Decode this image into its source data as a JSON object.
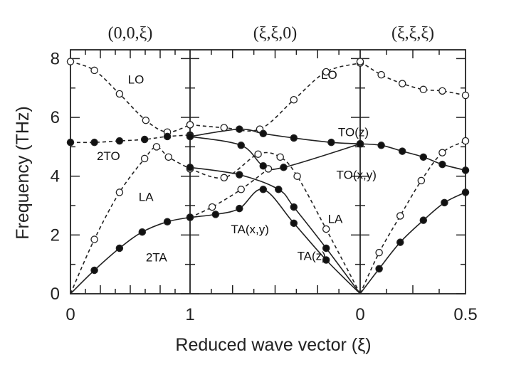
{
  "chart_data": {
    "type": "scatter",
    "title": "",
    "xlabel": "Reduced wave vector (ξ)",
    "ylabel": "Frequency (THz)",
    "ylim": [
      0,
      8.3
    ],
    "yticks": [
      "0",
      "2",
      "4",
      "6",
      "8"
    ],
    "xtick_labels": [
      "0",
      "1",
      "0",
      "0.5"
    ],
    "directions": [
      "(0,0,ξ)",
      "(ξ,ξ,0)",
      "(ξ,ξ,ξ)"
    ],
    "grid": false,
    "legend": "none",
    "colors": {
      "axis": "#222222",
      "filled_marker": "#111111",
      "open_marker": "#ffffff"
    },
    "panels": [
      {
        "name": "(0,0,ξ)",
        "xlim": [
          0,
          1
        ]
      },
      {
        "name": "(ξ,ξ,0)",
        "xlim": [
          1,
          0
        ]
      },
      {
        "name": "(ξ,ξ,ξ)",
        "xlim": [
          0,
          0.5
        ]
      }
    ],
    "mode_labels": [
      {
        "text": "LO",
        "panel": 0,
        "x": 0.48,
        "y": 7.3
      },
      {
        "text": "2TO",
        "panel": 0,
        "x": 0.22,
        "y": 4.7
      },
      {
        "text": "LA",
        "panel": 0,
        "x": 0.57,
        "y": 3.3
      },
      {
        "text": "2TA",
        "panel": 0,
        "x": 0.63,
        "y": 1.25
      },
      {
        "text": "LO",
        "panel": 1,
        "x": 0.23,
        "y": 7.45
      },
      {
        "text": "TO(z)",
        "panel": 1,
        "x": 0.13,
        "y": 5.5
      },
      {
        "text": "TO(x,y)",
        "panel": 1,
        "x": 0.14,
        "y": 4.05
      },
      {
        "text": "LA",
        "panel": 1,
        "x": 0.19,
        "y": 2.55
      },
      {
        "text": "TA(x,y)",
        "panel": 1,
        "x": 0.76,
        "y": 2.2
      },
      {
        "text": "TA(z)",
        "panel": 1,
        "x": 0.37,
        "y": 1.3
      }
    ],
    "series": [
      {
        "panel": 0,
        "marker": "open",
        "style": "dashed",
        "x": [
          0,
          0.2,
          0.41,
          0.63,
          0.81,
          1
        ],
        "y": [
          7.9,
          7.6,
          6.8,
          5.9,
          5.5,
          5.75
        ]
      },
      {
        "panel": 0,
        "marker": "open",
        "style": "dashed",
        "x": [
          0,
          0.2,
          0.41,
          0.62,
          0.72,
          0.82,
          1
        ],
        "y": [
          0,
          1.85,
          3.45,
          4.6,
          5.0,
          4.65,
          4.25
        ]
      },
      {
        "panel": 0,
        "marker": "filled",
        "style": "dashed",
        "x": [
          0,
          0.2,
          0.41,
          0.62,
          0.81,
          1
        ],
        "y": [
          5.15,
          5.15,
          5.2,
          5.25,
          5.35,
          5.4
        ]
      },
      {
        "panel": 0,
        "marker": "filled",
        "style": "solid",
        "x": [
          0,
          0.2,
          0.41,
          0.6,
          0.81,
          1
        ],
        "y": [
          0,
          0.8,
          1.55,
          2.1,
          2.45,
          2.6
        ]
      },
      {
        "panel": 1,
        "marker": "open",
        "style": "dashed",
        "x": [
          1,
          0.8,
          0.59,
          0.39,
          0.2,
          0
        ],
        "y": [
          5.75,
          5.65,
          5.6,
          6.6,
          7.55,
          7.85
        ]
      },
      {
        "panel": 1,
        "marker": "open",
        "style": "dashed",
        "x": [
          1,
          0.8,
          0.6,
          0.47,
          0.37,
          0.2,
          0
        ],
        "y": [
          4.25,
          3.95,
          4.75,
          4.65,
          4.0,
          2.2,
          0
        ]
      },
      {
        "panel": 1,
        "marker": "open",
        "style": "dashed",
        "x": [
          1,
          0.87,
          0.7,
          0.54
        ],
        "y": [
          2.6,
          2.95,
          3.55,
          4.25
        ]
      },
      {
        "panel": 1,
        "marker": "filled",
        "style": "solid",
        "x": [
          1,
          0.71,
          0.57,
          0.39,
          0.17,
          0
        ],
        "y": [
          5.35,
          5.6,
          5.45,
          5.3,
          5.15,
          5.1
        ]
      },
      {
        "panel": 1,
        "marker": "filled",
        "style": "solid",
        "x": [
          1,
          0.7,
          0.57,
          0.45,
          0
        ],
        "y": [
          5.35,
          5.05,
          4.35,
          4.3,
          5.1
        ]
      },
      {
        "panel": 1,
        "marker": "filled",
        "style": "solid",
        "x": [
          1,
          0.71,
          0.48,
          0.39,
          0.2,
          0
        ],
        "y": [
          4.3,
          4.05,
          3.55,
          2.95,
          1.55,
          0
        ]
      },
      {
        "panel": 1,
        "marker": "filled",
        "style": "solid",
        "x": [
          1,
          0.85,
          0.71,
          0.57,
          0.39,
          0.2,
          0
        ],
        "y": [
          2.6,
          2.7,
          2.9,
          3.55,
          2.4,
          1.15,
          0
        ]
      },
      {
        "panel": 2,
        "marker": "open",
        "style": "dashed",
        "x": [
          0,
          0.1,
          0.2,
          0.3,
          0.39,
          0.5
        ],
        "y": [
          7.9,
          7.45,
          7.15,
          6.95,
          6.9,
          6.75
        ]
      },
      {
        "panel": 2,
        "marker": "filled",
        "style": "solid",
        "x": [
          0,
          0.1,
          0.2,
          0.3,
          0.39,
          0.5
        ],
        "y": [
          5.1,
          5.05,
          4.85,
          4.65,
          4.4,
          4.2
        ]
      },
      {
        "panel": 2,
        "marker": "open",
        "style": "dashed",
        "x": [
          0,
          0.09,
          0.19,
          0.29,
          0.39,
          0.5
        ],
        "y": [
          0,
          1.4,
          2.65,
          3.85,
          4.8,
          5.2
        ]
      },
      {
        "panel": 2,
        "marker": "filled",
        "style": "solid",
        "x": [
          0,
          0.09,
          0.19,
          0.3,
          0.4,
          0.5
        ],
        "y": [
          0,
          0.85,
          1.75,
          2.5,
          3.1,
          3.45
        ]
      }
    ]
  }
}
